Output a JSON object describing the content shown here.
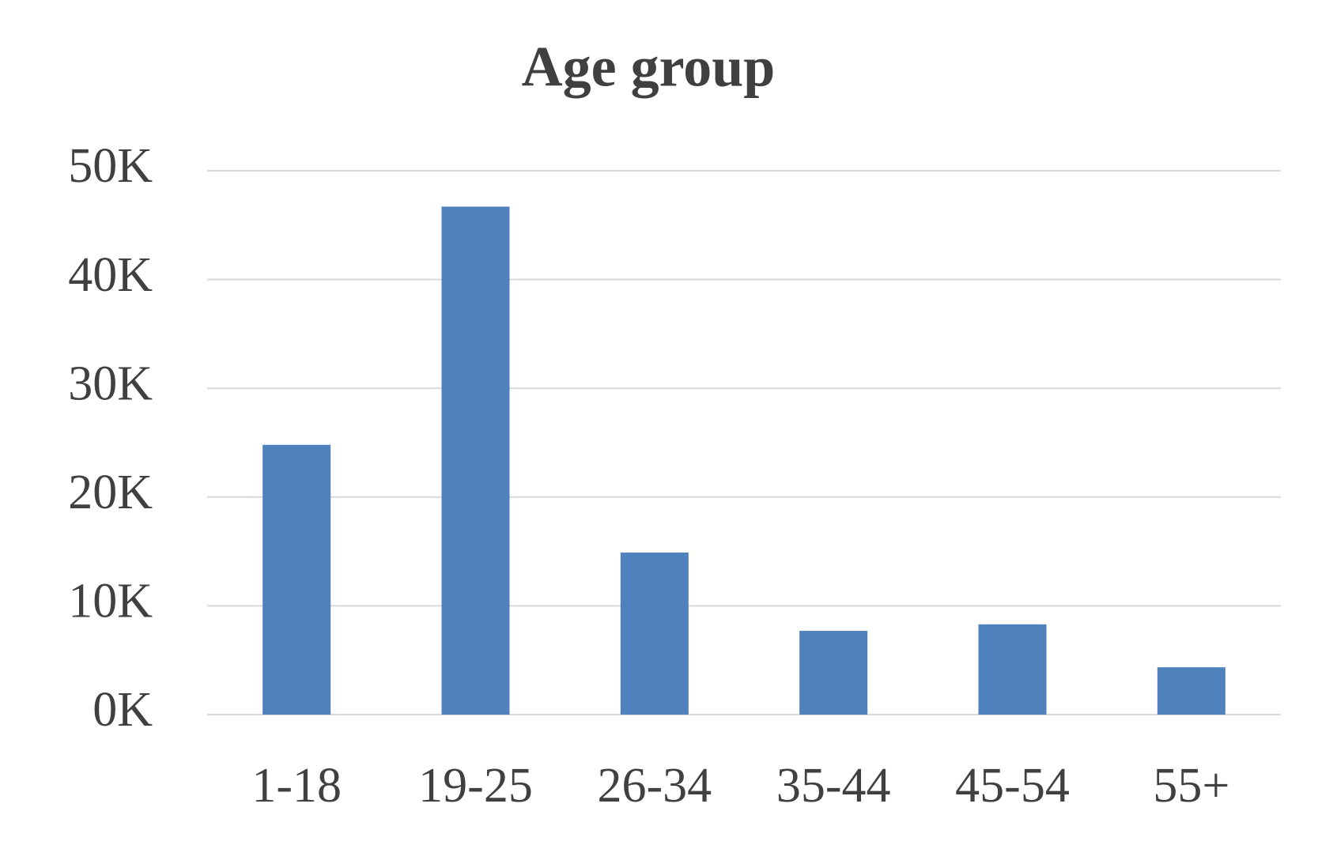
{
  "chart_data": {
    "type": "bar",
    "title": "Age group",
    "categories": [
      "1-18",
      "19-25",
      "26-34",
      "35-44",
      "45-54",
      "55+"
    ],
    "values": [
      24800,
      46700,
      14900,
      7700,
      8300,
      4350
    ],
    "color": "#4f81bd",
    "ylim": [
      0,
      50000
    ],
    "yticks": [
      {
        "value": 0,
        "label": "0K"
      },
      {
        "value": 10000,
        "label": "10K"
      },
      {
        "value": 20000,
        "label": "20K"
      },
      {
        "value": 30000,
        "label": "30K"
      },
      {
        "value": 40000,
        "label": "40K"
      },
      {
        "value": 50000,
        "label": "50K"
      }
    ],
    "grid": true
  }
}
